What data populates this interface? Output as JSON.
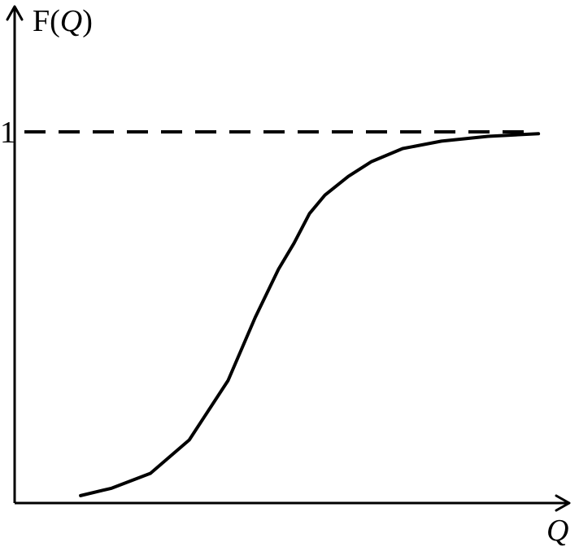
{
  "chart_data": {
    "type": "line",
    "title": "",
    "ylabel": "F(Q)",
    "ylabel_parts": {
      "prefix": "F(",
      "var": "Q",
      "suffix": ")"
    },
    "xlabel": "Q",
    "y_tick_labels": [
      "1"
    ],
    "asymptote": {
      "y": 1,
      "style": "dashed"
    },
    "xlim": [
      0,
      1.4
    ],
    "ylim": [
      0,
      1.02
    ],
    "grid": false,
    "legend": "none",
    "series": [
      {
        "x": [
          0.17,
          0.25,
          0.35,
          0.45,
          0.55,
          0.62,
          0.68,
          0.72,
          0.76,
          0.8,
          0.86,
          0.92,
          1.0,
          1.1,
          1.22,
          1.35
        ],
        "y": [
          0.02,
          0.04,
          0.08,
          0.17,
          0.33,
          0.5,
          0.63,
          0.7,
          0.78,
          0.83,
          0.88,
          0.92,
          0.955,
          0.975,
          0.988,
          0.995
        ]
      }
    ],
    "colors": {
      "line": "#000000",
      "background": "#ffffff"
    }
  }
}
